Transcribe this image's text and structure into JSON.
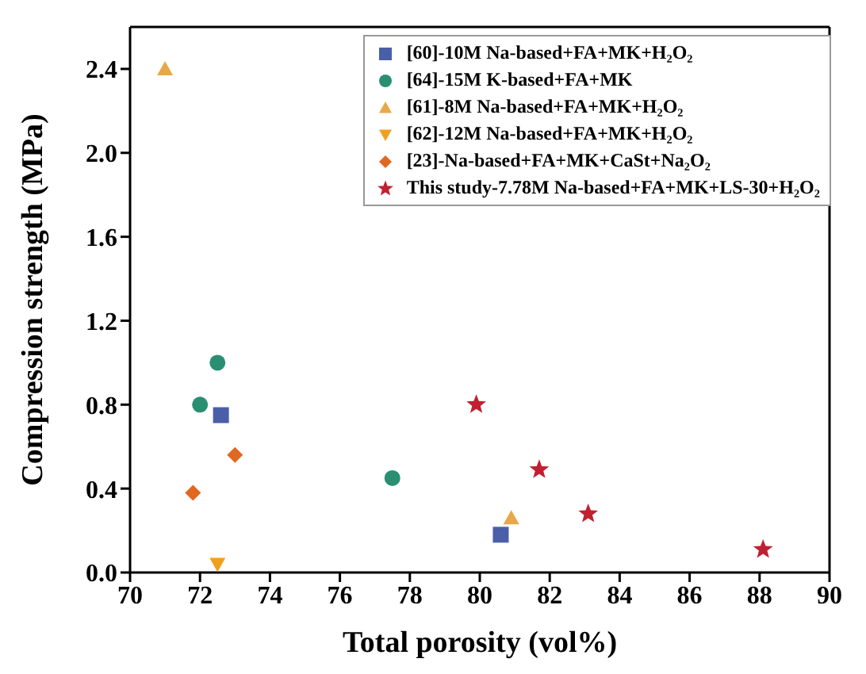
{
  "chart_data": {
    "type": "scatter",
    "xlabel": "Total porosity (vol%)",
    "ylabel": "Compression strength (MPa)",
    "xlim": [
      70,
      90
    ],
    "xticks": [
      70,
      72,
      74,
      76,
      78,
      80,
      82,
      84,
      86,
      88,
      90
    ],
    "ylim": [
      0,
      2.6
    ],
    "yticks": [
      {
        "value": 0,
        "label": "0.0"
      },
      0.4,
      0.8,
      1.2,
      1.6,
      {
        "value": 2,
        "label": "2.0"
      },
      2.4
    ],
    "legend": "top right",
    "series": [
      {
        "name": "[60]-10M Na-based+FA+MK+H₂O₂",
        "color": "#4a5fa8",
        "marker": "square",
        "x": [
          72.6,
          80.6
        ],
        "values": [
          0.75,
          0.18
        ]
      },
      {
        "name": "[64]-15M K-based+FA+MK",
        "color": "#2a8f72",
        "marker": "circle",
        "x": [
          72.0,
          72.5,
          77.5
        ],
        "values": [
          0.8,
          1.0,
          0.45
        ]
      },
      {
        "name": "[61]-8M Na-based+FA+MK+H₂O₂",
        "color": "#e8a848",
        "marker": "triangle",
        "x": [
          71.0,
          80.9
        ],
        "values": [
          2.4,
          0.26
        ]
      },
      {
        "name": "[62]-12M Na-based+FA+MK+H₂O₂",
        "color": "#f0a020",
        "marker": "triangle-down",
        "x": [
          72.5
        ],
        "values": [
          0.04
        ]
      },
      {
        "name": "[23]-Na-based+FA+MK+CaSt+Na₂O₂",
        "color": "#e06820",
        "marker": "diamond",
        "x": [
          71.8,
          73.0
        ],
        "values": [
          0.38,
          0.56
        ]
      },
      {
        "name": "This study-7.78M Na-based+FA+MK+LS-30+H₂O₂",
        "color": "#c02030",
        "marker": "star",
        "x": [
          79.9,
          81.7,
          83.1,
          88.1
        ],
        "values": [
          0.8,
          0.49,
          0.28,
          0.11
        ]
      }
    ]
  }
}
